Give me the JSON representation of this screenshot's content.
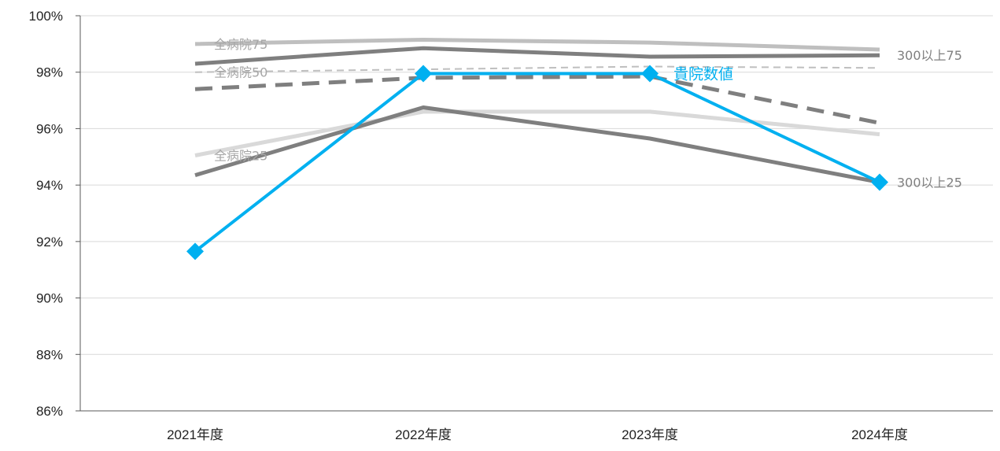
{
  "chart_data": {
    "type": "line",
    "title": "",
    "xlabel": "",
    "ylabel": "",
    "categories": [
      "2021年度",
      "2022年度",
      "2023年度",
      "2024年度"
    ],
    "ylim": [
      86,
      100
    ],
    "yticks": [
      86,
      88,
      90,
      92,
      94,
      96,
      98,
      100
    ],
    "ytick_labels": [
      "86%",
      "88%",
      "90%",
      "92%",
      "94%",
      "96%",
      "98%",
      "100%"
    ],
    "grid": "horizontal",
    "legend": "none",
    "series": [
      {
        "name": "全病院75",
        "values": [
          99.0,
          99.15,
          99.05,
          98.8
        ],
        "color": "#bfbfbf",
        "style": "solid",
        "label_at": 0
      },
      {
        "name": "全病院50",
        "values": [
          98.0,
          98.1,
          98.2,
          98.15
        ],
        "color": "#bfbfbf",
        "style": "dashed-thin",
        "label_at": 0
      },
      {
        "name": "全病院25",
        "values": [
          95.05,
          96.6,
          96.6,
          95.8
        ],
        "color": "#d9d9d9",
        "style": "solid",
        "label_at": 0
      },
      {
        "name": "300以上75",
        "values": [
          98.3,
          98.85,
          98.55,
          98.6
        ],
        "color": "#7f7f7f",
        "style": "solid",
        "label_at": 3
      },
      {
        "name": "",
        "values": [
          97.4,
          97.8,
          97.85,
          96.2
        ],
        "color": "#7f7f7f",
        "style": "dashed-thick",
        "label_at": null
      },
      {
        "name": "300以上25",
        "values": [
          94.35,
          96.75,
          95.65,
          94.1
        ],
        "color": "#7f7f7f",
        "style": "solid",
        "label_at": 3
      },
      {
        "name": "貴院数値",
        "values": [
          91.65,
          97.95,
          97.95,
          94.1
        ],
        "color": "#00b0f0",
        "style": "solid-markers",
        "label_at": 2
      }
    ]
  }
}
